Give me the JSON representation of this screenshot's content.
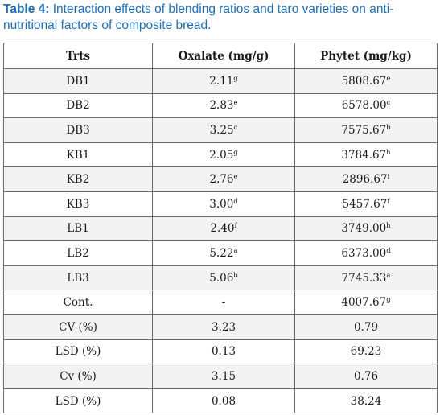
{
  "caption": {
    "label": "Table 4:",
    "text": " Interaction effects of blending ratios and taro varieties on anti-nutritional factors of composite bread."
  },
  "table": {
    "headers": [
      "Trts",
      "Oxalate (mg/g)",
      "Phytet (mg/kg)"
    ],
    "rows": [
      {
        "trt": "DB1",
        "oxalate": "2.11",
        "oxalate_sup": "g",
        "phytet": "5808.67",
        "phytet_sup": "e"
      },
      {
        "trt": "DB2",
        "oxalate": "2.83",
        "oxalate_sup": "e",
        "phytet": "6578.00",
        "phytet_sup": "c"
      },
      {
        "trt": "DB3",
        "oxalate": "3.25",
        "oxalate_sup": "c",
        "phytet": "7575.67",
        "phytet_sup": "b"
      },
      {
        "trt": "KB1",
        "oxalate": "2.05",
        "oxalate_sup": "g",
        "phytet": "3784.67",
        "phytet_sup": "h"
      },
      {
        "trt": "KB2",
        "oxalate": "2.76",
        "oxalate_sup": "e",
        "phytet": "2896.67",
        "phytet_sup": "i"
      },
      {
        "trt": "KB3",
        "oxalate": "3.00",
        "oxalate_sup": "d",
        "phytet": "5457.67",
        "phytet_sup": "f"
      },
      {
        "trt": "LB1",
        "oxalate": "2.40",
        "oxalate_sup": "f",
        "phytet": "3749.00",
        "phytet_sup": "h"
      },
      {
        "trt": "LB2",
        "oxalate": "5.22",
        "oxalate_sup": "a",
        "phytet": "6373.00",
        "phytet_sup": "d"
      },
      {
        "trt": "LB3",
        "oxalate": "5.06",
        "oxalate_sup": "b",
        "phytet": "7745.33",
        "phytet_sup": "a"
      },
      {
        "trt": "Cont.",
        "oxalate": "-",
        "oxalate_sup": "",
        "phytet": "4007.67",
        "phytet_sup": "g"
      },
      {
        "trt": "CV (%)",
        "oxalate": "3.23",
        "oxalate_sup": "",
        "phytet": "0.79",
        "phytet_sup": ""
      },
      {
        "trt": "LSD (%)",
        "oxalate": "0.13",
        "oxalate_sup": "",
        "phytet": "69.23",
        "phytet_sup": ""
      },
      {
        "trt": "Cv (%)",
        "oxalate": "3.15",
        "oxalate_sup": "",
        "phytet": "0.76",
        "phytet_sup": ""
      },
      {
        "trt": "LSD (%)",
        "oxalate": "0.08",
        "oxalate_sup": "",
        "phytet": "38.24",
        "phytet_sup": ""
      }
    ]
  }
}
